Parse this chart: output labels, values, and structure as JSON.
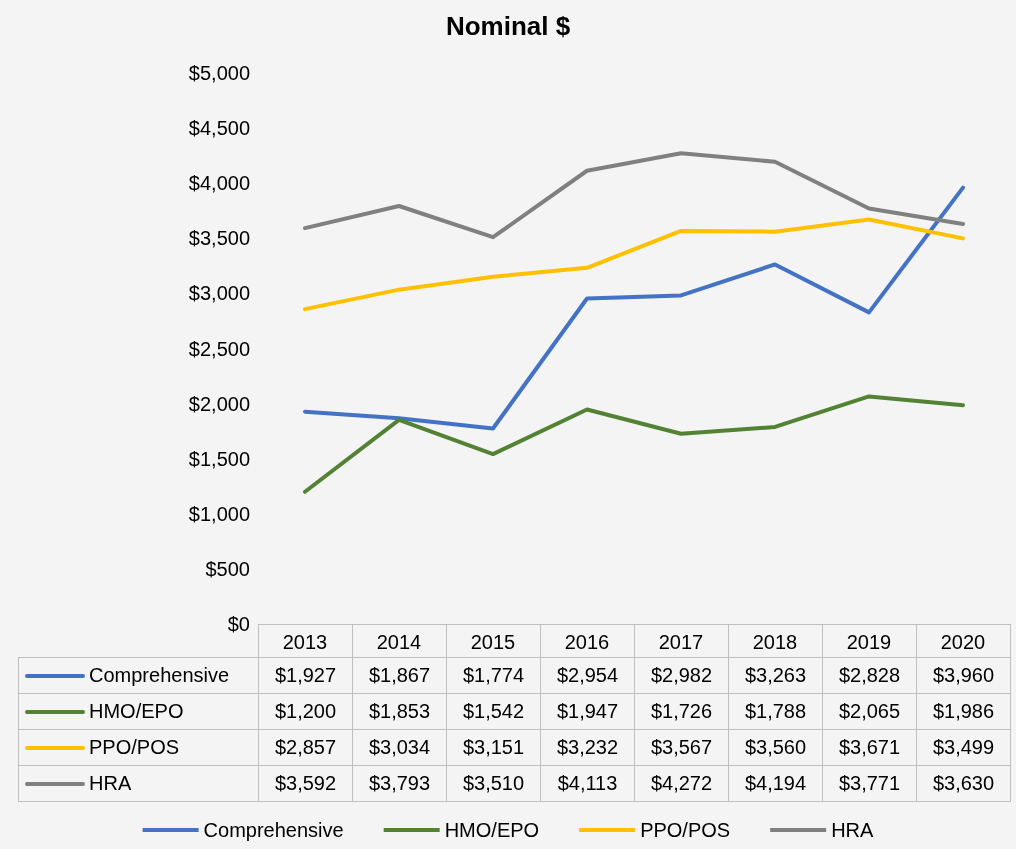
{
  "chart_data": {
    "type": "line",
    "title": "Nominal $",
    "categories": [
      "2013",
      "2014",
      "2015",
      "2016",
      "2017",
      "2018",
      "2019",
      "2020"
    ],
    "series": [
      {
        "name": "Comprehensive",
        "color": "#4472c4",
        "values": [
          1927,
          1867,
          1774,
          2954,
          2982,
          3263,
          2828,
          3960
        ],
        "value_labels": [
          "$1,927",
          "$1,867",
          "$1,774",
          "$2,954",
          "$2,982",
          "$3,263",
          "$2,828",
          "$3,960"
        ]
      },
      {
        "name": "HMO/EPO",
        "color": "#548235",
        "values": [
          1200,
          1853,
          1542,
          1947,
          1726,
          1788,
          2065,
          1986
        ],
        "value_labels": [
          "$1,200",
          "$1,853",
          "$1,542",
          "$1,947",
          "$1,726",
          "$1,788",
          "$2,065",
          "$1,986"
        ]
      },
      {
        "name": "PPO/POS",
        "color": "#ffc000",
        "values": [
          2857,
          3034,
          3151,
          3232,
          3567,
          3560,
          3671,
          3499
        ],
        "value_labels": [
          "$2,857",
          "$3,034",
          "$3,151",
          "$3,232",
          "$3,567",
          "$3,560",
          "$3,671",
          "$3,499"
        ]
      },
      {
        "name": "HRA",
        "color": "#808080",
        "values": [
          3592,
          3793,
          3510,
          4113,
          4272,
          4194,
          3771,
          3630
        ],
        "value_labels": [
          "$3,592",
          "$3,793",
          "$3,510",
          "$4,113",
          "$4,272",
          "$4,194",
          "$3,771",
          "$3,630"
        ]
      }
    ],
    "ylim": [
      0,
      5000
    ],
    "yticks": [
      {
        "value": 0,
        "label": "$0"
      },
      {
        "value": 500,
        "label": "$500"
      },
      {
        "value": 1000,
        "label": "$1,000"
      },
      {
        "value": 1500,
        "label": "$1,500"
      },
      {
        "value": 2000,
        "label": "$2,000"
      },
      {
        "value": 2500,
        "label": "$2,500"
      },
      {
        "value": 3000,
        "label": "$3,000"
      },
      {
        "value": 3500,
        "label": "$3,500"
      },
      {
        "value": 4000,
        "label": "$4,000"
      },
      {
        "value": 4500,
        "label": "$4,500"
      },
      {
        "value": 5000,
        "label": "$5,000"
      }
    ],
    "grid": false,
    "legend": "bottom",
    "marker": "none",
    "line_style": "solid"
  }
}
